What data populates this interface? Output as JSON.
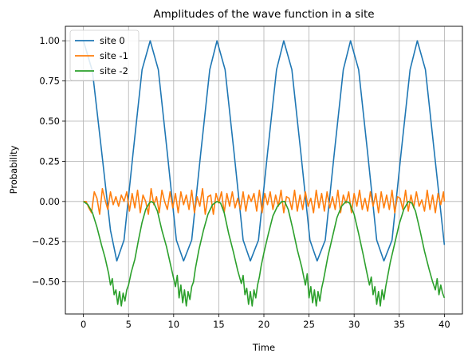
{
  "chart_data": {
    "type": "line",
    "title": "Amplitudes of the wave function in a site",
    "xlabel": "Time",
    "ylabel": "Probability",
    "xlim": [
      -2,
      42
    ],
    "ylim": [
      -0.7,
      1.09
    ],
    "xticks": [
      0,
      5,
      10,
      15,
      20,
      25,
      30,
      35,
      40
    ],
    "yticks": [
      -0.5,
      -0.25,
      0.0,
      0.25,
      0.5,
      0.75,
      1.0
    ],
    "xtick_labels": [
      "0",
      "5",
      "10",
      "15",
      "20",
      "25",
      "30",
      "35",
      "40"
    ],
    "ytick_labels": [
      "−0.50",
      "−0.25",
      "0.00",
      "0.25",
      "0.50",
      "0.75",
      "1.00"
    ],
    "grid": true,
    "legend_position": "top-left",
    "series": [
      {
        "name": "site 0",
        "color": "#1f77b4",
        "x": [
          0,
          1,
          2,
          3,
          3.7,
          4.5,
          5.5,
          6.5,
          7.4,
          8.3,
          9.3,
          10.3,
          11.1,
          12,
          13,
          14,
          14.8,
          15.7,
          16.7,
          17.7,
          18.5,
          19.4,
          20.4,
          21.4,
          22.2,
          23.1,
          24.1,
          25.1,
          25.9,
          26.8,
          27.8,
          28.8,
          29.6,
          30.5,
          31.5,
          32.5,
          33.3,
          34.2,
          35.2,
          36.2,
          37,
          37.9,
          38.9,
          40
        ],
        "y": [
          1.0,
          0.81,
          0.32,
          -0.18,
          -0.37,
          -0.24,
          0.3,
          0.82,
          1.0,
          0.82,
          0.3,
          -0.24,
          -0.37,
          -0.24,
          0.3,
          0.82,
          1.0,
          0.82,
          0.3,
          -0.24,
          -0.37,
          -0.24,
          0.3,
          0.82,
          1.0,
          0.82,
          0.3,
          -0.24,
          -0.37,
          -0.24,
          0.3,
          0.82,
          1.0,
          0.82,
          0.3,
          -0.24,
          -0.37,
          -0.24,
          0.3,
          0.82,
          1.0,
          0.82,
          0.3,
          -0.27
        ]
      },
      {
        "name": "site -1",
        "color": "#ff7f0e",
        "x": [
          0,
          0.3,
          0.6,
          0.9,
          1.2,
          1.5,
          1.8,
          2.1,
          2.4,
          2.7,
          3.0,
          3.3,
          3.6,
          3.9,
          4.2,
          4.5,
          4.8,
          5.1,
          5.4,
          5.7,
          6.0,
          6.3,
          6.6,
          6.9,
          7.2,
          7.5,
          7.8,
          8.1,
          8.4,
          8.7,
          9.0,
          9.3,
          9.6,
          9.9,
          10.2,
          10.5,
          10.8,
          11.1,
          11.4,
          11.7,
          12.0,
          12.3,
          12.6,
          12.9,
          13.2,
          13.5,
          13.8,
          14.1,
          14.4,
          14.7,
          15.0,
          15.3,
          15.6,
          15.9,
          16.2,
          16.5,
          16.8,
          17.1,
          17.4,
          17.7,
          18.0,
          18.3,
          18.6,
          18.9,
          19.2,
          19.5,
          19.8,
          20.1,
          20.4,
          20.7,
          21.0,
          21.3,
          21.6,
          21.9,
          22.2,
          22.5,
          22.8,
          23.1,
          23.4,
          23.7,
          24.0,
          24.3,
          24.6,
          24.9,
          25.2,
          25.5,
          25.8,
          26.1,
          26.4,
          26.7,
          27.0,
          27.3,
          27.6,
          27.9,
          28.2,
          28.5,
          28.8,
          29.1,
          29.4,
          29.7,
          30.0,
          30.3,
          30.6,
          30.9,
          31.2,
          31.5,
          31.8,
          32.1,
          32.4,
          32.7,
          33.0,
          33.3,
          33.6,
          33.9,
          34.2,
          34.5,
          34.8,
          35.1,
          35.4,
          35.7,
          36.0,
          36.3,
          36.6,
          36.9,
          37.2,
          37.5,
          37.8,
          38.1,
          38.4,
          38.7,
          39.0,
          39.3,
          39.6,
          39.9,
          40.0
        ],
        "y": [
          0.0,
          0.0,
          -0.04,
          -0.07,
          0.06,
          0.02,
          -0.08,
          0.08,
          0.01,
          -0.05,
          0.06,
          -0.02,
          0.03,
          -0.03,
          0.04,
          0.0,
          0.06,
          -0.06,
          0.05,
          -0.04,
          0.07,
          -0.07,
          0.04,
          0.0,
          -0.08,
          0.08,
          -0.02,
          0.03,
          -0.07,
          0.07,
          0.0,
          -0.05,
          0.06,
          -0.04,
          0.05,
          -0.07,
          0.06,
          -0.02,
          0.04,
          -0.05,
          0.07,
          -0.07,
          0.03,
          -0.03,
          0.08,
          -0.08,
          0.03,
          0.04,
          -0.08,
          0.05,
          -0.01,
          0.06,
          -0.07,
          0.05,
          -0.03,
          0.06,
          -0.04,
          0.02,
          -0.05,
          0.06,
          -0.06,
          0.04,
          0.0,
          0.05,
          -0.06,
          0.07,
          -0.07,
          0.05,
          -0.02,
          0.06,
          -0.05,
          0.04,
          -0.03,
          0.07,
          -0.07,
          0.03,
          0.02,
          -0.05,
          0.07,
          -0.06,
          0.04,
          -0.05,
          0.06,
          -0.03,
          0.02,
          -0.07,
          0.07,
          -0.04,
          0.05,
          -0.06,
          0.06,
          -0.04,
          0.03,
          -0.05,
          0.07,
          -0.07,
          0.04,
          -0.01,
          0.06,
          -0.07,
          0.05,
          -0.03,
          0.07,
          -0.05,
          0.02,
          -0.06,
          0.06,
          -0.03,
          0.05,
          -0.07,
          0.06,
          -0.04,
          0.04,
          -0.05,
          0.07,
          -0.07,
          0.03,
          0.02,
          -0.05,
          0.07,
          -0.06,
          0.04,
          -0.04,
          0.06,
          -0.03,
          0.01,
          -0.06,
          0.07,
          -0.05,
          0.04,
          -0.07,
          0.05,
          -0.02,
          0.06,
          0.0
        ]
      },
      {
        "name": "site -2",
        "color": "#2ca02c",
        "x": [
          0,
          0.5,
          1.0,
          1.5,
          2.0,
          2.4,
          2.8,
          3.0,
          3.2,
          3.4,
          3.6,
          3.8,
          4.0,
          4.2,
          4.4,
          4.6,
          4.8,
          5.0,
          5.3,
          5.7,
          6.1,
          6.5,
          6.9,
          7.3,
          7.5,
          7.8,
          8.2,
          8.7,
          9.2,
          9.6,
          10.0,
          10.2,
          10.4,
          10.6,
          10.8,
          11.0,
          11.2,
          11.4,
          11.6,
          11.8,
          12.0,
          12.2,
          12.4,
          12.8,
          13.3,
          13.8,
          14.3,
          14.8,
          15.2,
          15.6,
          16.1,
          16.6,
          17.1,
          17.5,
          17.7,
          17.9,
          18.1,
          18.3,
          18.5,
          18.7,
          18.9,
          19.1,
          19.3,
          19.5,
          19.7,
          20.0,
          20.5,
          21.0,
          21.5,
          22.0,
          22.3,
          22.7,
          23.2,
          23.7,
          24.2,
          24.6,
          24.8,
          25.0,
          25.2,
          25.4,
          25.6,
          25.8,
          26.0,
          26.2,
          26.4,
          26.6,
          26.8,
          27.1,
          27.6,
          28.1,
          28.6,
          29.1,
          29.5,
          30.0,
          30.5,
          31.0,
          31.4,
          31.7,
          31.9,
          32.1,
          32.3,
          32.5,
          32.7,
          32.9,
          33.1,
          33.3,
          33.5,
          33.7,
          34.0,
          34.5,
          35.0,
          35.5,
          36.0,
          36.4,
          36.8,
          37.3,
          37.8,
          38.3,
          38.7,
          39.0,
          39.2,
          39.4,
          39.6,
          39.8,
          40.0
        ],
        "y": [
          0.0,
          -0.02,
          -0.07,
          -0.16,
          -0.27,
          -0.35,
          -0.45,
          -0.52,
          -0.48,
          -0.58,
          -0.55,
          -0.64,
          -0.56,
          -0.65,
          -0.57,
          -0.62,
          -0.55,
          -0.52,
          -0.44,
          -0.36,
          -0.24,
          -0.13,
          -0.05,
          -0.01,
          0.0,
          -0.01,
          -0.06,
          -0.18,
          -0.28,
          -0.38,
          -0.48,
          -0.53,
          -0.46,
          -0.6,
          -0.52,
          -0.63,
          -0.55,
          -0.65,
          -0.56,
          -0.61,
          -0.53,
          -0.5,
          -0.42,
          -0.3,
          -0.18,
          -0.08,
          -0.02,
          0.0,
          -0.01,
          -0.07,
          -0.2,
          -0.31,
          -0.43,
          -0.51,
          -0.46,
          -0.58,
          -0.54,
          -0.64,
          -0.56,
          -0.65,
          -0.55,
          -0.6,
          -0.52,
          -0.47,
          -0.4,
          -0.32,
          -0.2,
          -0.09,
          -0.03,
          0.0,
          0.0,
          -0.05,
          -0.17,
          -0.3,
          -0.41,
          -0.52,
          -0.45,
          -0.6,
          -0.53,
          -0.63,
          -0.55,
          -0.65,
          -0.56,
          -0.62,
          -0.54,
          -0.49,
          -0.43,
          -0.34,
          -0.22,
          -0.1,
          -0.03,
          0.0,
          -0.01,
          -0.08,
          -0.2,
          -0.33,
          -0.44,
          -0.52,
          -0.47,
          -0.58,
          -0.53,
          -0.64,
          -0.56,
          -0.65,
          -0.55,
          -0.61,
          -0.53,
          -0.47,
          -0.38,
          -0.26,
          -0.14,
          -0.05,
          0.0,
          -0.01,
          -0.06,
          -0.18,
          -0.31,
          -0.42,
          -0.5,
          -0.55,
          -0.48,
          -0.58,
          -0.52,
          -0.57,
          -0.6
        ]
      }
    ]
  }
}
